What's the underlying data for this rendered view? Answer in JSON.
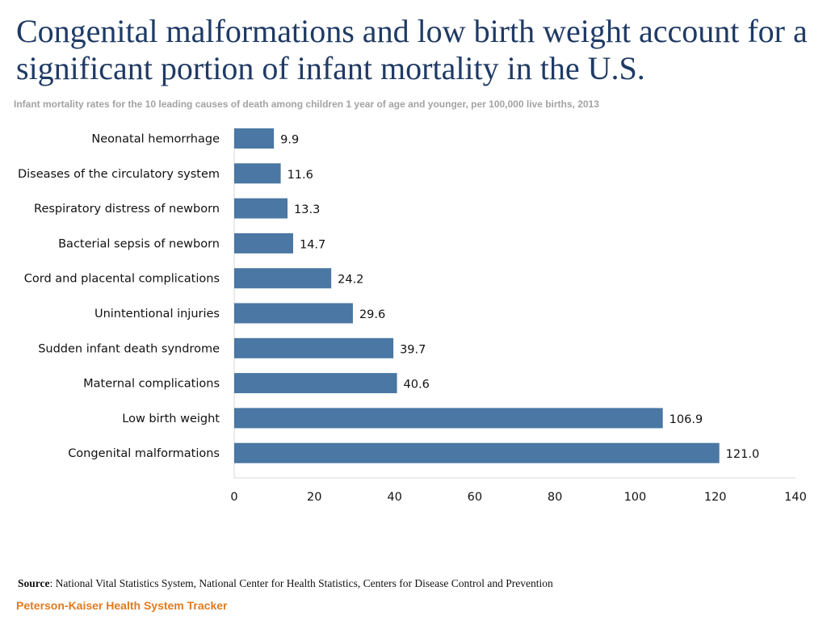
{
  "title": "Congenital malformations and low birth weight account for a significant portion of infant mortality in the U.S.",
  "subtitle": "Infant mortality rates for the 10 leading causes of death among children 1 year of age and younger, per 100,000 live births, 2013",
  "source_label": "Source",
  "source_text": ": National Vital Statistics System, National Center for Health Statistics, Centers for Disease Control and Prevention",
  "brand": "Peterson-Kaiser Health System Tracker",
  "colors": {
    "bar": "#4a77a3",
    "title": "#1f3a64",
    "brand": "#e07b20",
    "axis": "#d9d9d9"
  },
  "chart_data": {
    "type": "bar",
    "orientation": "horizontal",
    "categories": [
      "Neonatal hemorrhage",
      "Diseases of the circulatory system",
      "Respiratory distress of newborn",
      "Bacterial sepsis of newborn",
      "Cord and placental complications",
      "Unintentional injuries",
      "Sudden infant death syndrome",
      "Maternal complications",
      "Low birth weight",
      "Congenital malformations"
    ],
    "values": [
      9.9,
      11.6,
      13.3,
      14.7,
      24.2,
      29.6,
      39.7,
      40.6,
      106.9,
      121.0
    ],
    "value_labels": [
      "9.9",
      "11.6",
      "13.3",
      "14.7",
      "24.2",
      "29.6",
      "39.7",
      "40.6",
      "106.9",
      "121.0"
    ],
    "xlim": [
      0,
      140
    ],
    "xticks": [
      0,
      20,
      40,
      60,
      80,
      100,
      120,
      140
    ],
    "xtick_labels": [
      "0",
      "20",
      "40",
      "60",
      "80",
      "100",
      "120",
      "140"
    ],
    "xlabel": "",
    "ylabel": "",
    "grid": false
  }
}
